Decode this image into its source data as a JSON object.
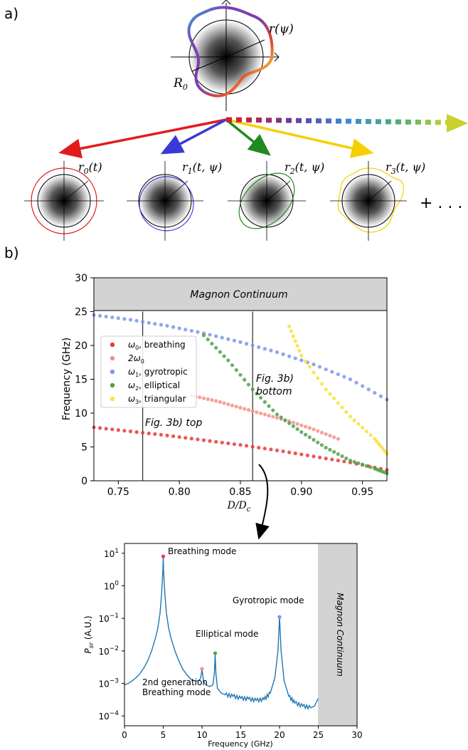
{
  "panel_a": {
    "label": "a)",
    "r_psi": "r(ψ)",
    "R0": "R",
    "R0_sub": "0",
    "modes": [
      {
        "base": "r",
        "sub": "0",
        "args": "(t)",
        "color": "#e31a1c"
      },
      {
        "base": "r",
        "sub": "1",
        "args": "(t, ψ)",
        "color": "#3a3ad8"
      },
      {
        "base": "r",
        "sub": "2",
        "args": "(t, ψ)",
        "color": "#1f8a1f"
      },
      {
        "base": "r",
        "sub": "3",
        "args": "(t, ψ)",
        "color": "#f5d000"
      }
    ],
    "ellipsis": "+ . . ."
  },
  "panel_b": {
    "label": "b)"
  },
  "chart_data": [
    {
      "type": "scatter",
      "title": "",
      "xlabel": "D/D",
      "xlabel_sub": "c",
      "ylabel": "Frequency (GHz)",
      "xlim": [
        0.73,
        0.97
      ],
      "ylim": [
        0,
        30
      ],
      "xticks": [
        "0.75",
        "0.80",
        "0.85",
        "0.90",
        "0.95"
      ],
      "yticks": [
        "0",
        "5",
        "10",
        "15",
        "20",
        "25",
        "30"
      ],
      "continuum_label": "Magnon Continuum",
      "continuum_range": [
        25,
        30
      ],
      "vlines": [
        0.77,
        0.86,
        0.97
      ],
      "annotations": [
        "Fig. 3b) top",
        "Fig. 3b)",
        "bottom"
      ],
      "legend_position": "center-left",
      "series": [
        {
          "name": "ω",
          "sub": "0",
          "suffix": ", breathing",
          "color": "#e8393a",
          "x": [
            0.73,
            0.76,
            0.79,
            0.82,
            0.85,
            0.88,
            0.91,
            0.94,
            0.97
          ],
          "y": [
            7.9,
            7.3,
            6.7,
            6.0,
            5.3,
            4.5,
            3.6,
            2.7,
            1.6
          ]
        },
        {
          "name": "2ω",
          "sub": "0",
          "suffix": "",
          "color": "#f39087",
          "x": [
            0.81,
            0.83,
            0.85,
            0.87,
            0.89,
            0.91,
            0.93
          ],
          "y": [
            12.6,
            11.8,
            10.8,
            9.8,
            8.8,
            7.6,
            6.2
          ]
        },
        {
          "name": "ω",
          "sub": "1",
          "suffix": ", gyrotropic",
          "color": "#7d97e6",
          "x": [
            0.73,
            0.76,
            0.79,
            0.82,
            0.85,
            0.88,
            0.91,
            0.94,
            0.97
          ],
          "y": [
            24.5,
            23.8,
            22.9,
            21.8,
            20.5,
            19.0,
            17.2,
            15.0,
            12.0
          ]
        },
        {
          "name": "ω",
          "sub": "2",
          "suffix": ", elliptical",
          "color": "#4fa24a",
          "x": [
            0.82,
            0.84,
            0.86,
            0.88,
            0.9,
            0.92,
            0.94,
            0.96,
            0.97
          ],
          "y": [
            21.5,
            17.8,
            13.5,
            9.8,
            7.2,
            4.9,
            3.0,
            1.8,
            1.1
          ]
        },
        {
          "name": "ω",
          "sub": "3",
          "suffix": ", triangular",
          "color": "#f8e23a",
          "x": [
            0.89,
            0.9,
            0.92,
            0.94,
            0.96,
            0.97
          ],
          "y": [
            22.8,
            18.5,
            13.5,
            9.5,
            6.2,
            4.0
          ]
        }
      ]
    },
    {
      "type": "line",
      "title": "",
      "xlabel": "Frequency (GHz)",
      "ylabel": "P",
      "ylabel_sub": "sr",
      "ylabel_suffix": " (A.U.)",
      "yscale": "log",
      "xlim": [
        0,
        30
      ],
      "ylim": [
        5e-05,
        20
      ],
      "xticks": [
        "0",
        "5",
        "10",
        "15",
        "20",
        "25",
        "30"
      ],
      "yticks": [
        {
          "base": "10",
          "exp": "1"
        },
        {
          "base": "10",
          "exp": "0"
        },
        {
          "base": "10",
          "exp": "−1"
        },
        {
          "base": "10",
          "exp": "−2"
        },
        {
          "base": "10",
          "exp": "−3"
        },
        {
          "base": "10",
          "exp": "−4"
        }
      ],
      "continuum_label": "Magnon Continuum",
      "continuum_range": [
        25,
        30
      ],
      "peaks": [
        {
          "label": "Breathing mode",
          "x": 5.0,
          "y": 8.0,
          "color": "#e8393a"
        },
        {
          "label": "2nd generation",
          "label2": "Breathing mode",
          "x": 10.0,
          "y": 0.0028,
          "color": "#f39087"
        },
        {
          "label": "Elliptical mode",
          "x": 11.7,
          "y": 0.0085,
          "color": "#4fa24a"
        },
        {
          "label": "Gyrotropic mode",
          "x": 20.0,
          "y": 0.11,
          "color": "#7d97e6"
        }
      ],
      "line_color": "#1f77b4",
      "curve": {
        "x": [
          0,
          0.5,
          1,
          1.5,
          2,
          2.5,
          3,
          3.5,
          4,
          4.3,
          4.6,
          4.8,
          4.95,
          5.0,
          5.05,
          5.2,
          5.4,
          5.7,
          6,
          6.5,
          7,
          7.5,
          8,
          8.5,
          9,
          9.5,
          9.8,
          9.95,
          10.0,
          10.05,
          10.2,
          10.5,
          11,
          11.4,
          11.6,
          11.7,
          11.8,
          12.0,
          12.5,
          13,
          14,
          15,
          16,
          17,
          18,
          18.8,
          19.4,
          19.8,
          20.0,
          20.2,
          20.6,
          21.2,
          22,
          23,
          24,
          24.5,
          25
        ],
        "y": [
          0.0009,
          0.001,
          0.0012,
          0.0015,
          0.002,
          0.003,
          0.005,
          0.01,
          0.025,
          0.05,
          0.15,
          0.6,
          3.0,
          8.0,
          3.0,
          0.6,
          0.15,
          0.05,
          0.025,
          0.01,
          0.005,
          0.0028,
          0.0019,
          0.0014,
          0.0012,
          0.0012,
          0.0014,
          0.0022,
          0.0028,
          0.0022,
          0.0012,
          0.0009,
          0.0008,
          0.0009,
          0.002,
          0.0085,
          0.002,
          0.0007,
          0.0005,
          0.00045,
          0.0004,
          0.00035,
          0.00033,
          0.0003,
          0.00032,
          0.0005,
          0.0015,
          0.01,
          0.11,
          0.01,
          0.0012,
          0.0004,
          0.00025,
          0.0002,
          0.00018,
          0.0002,
          0.00035
        ]
      }
    }
  ]
}
